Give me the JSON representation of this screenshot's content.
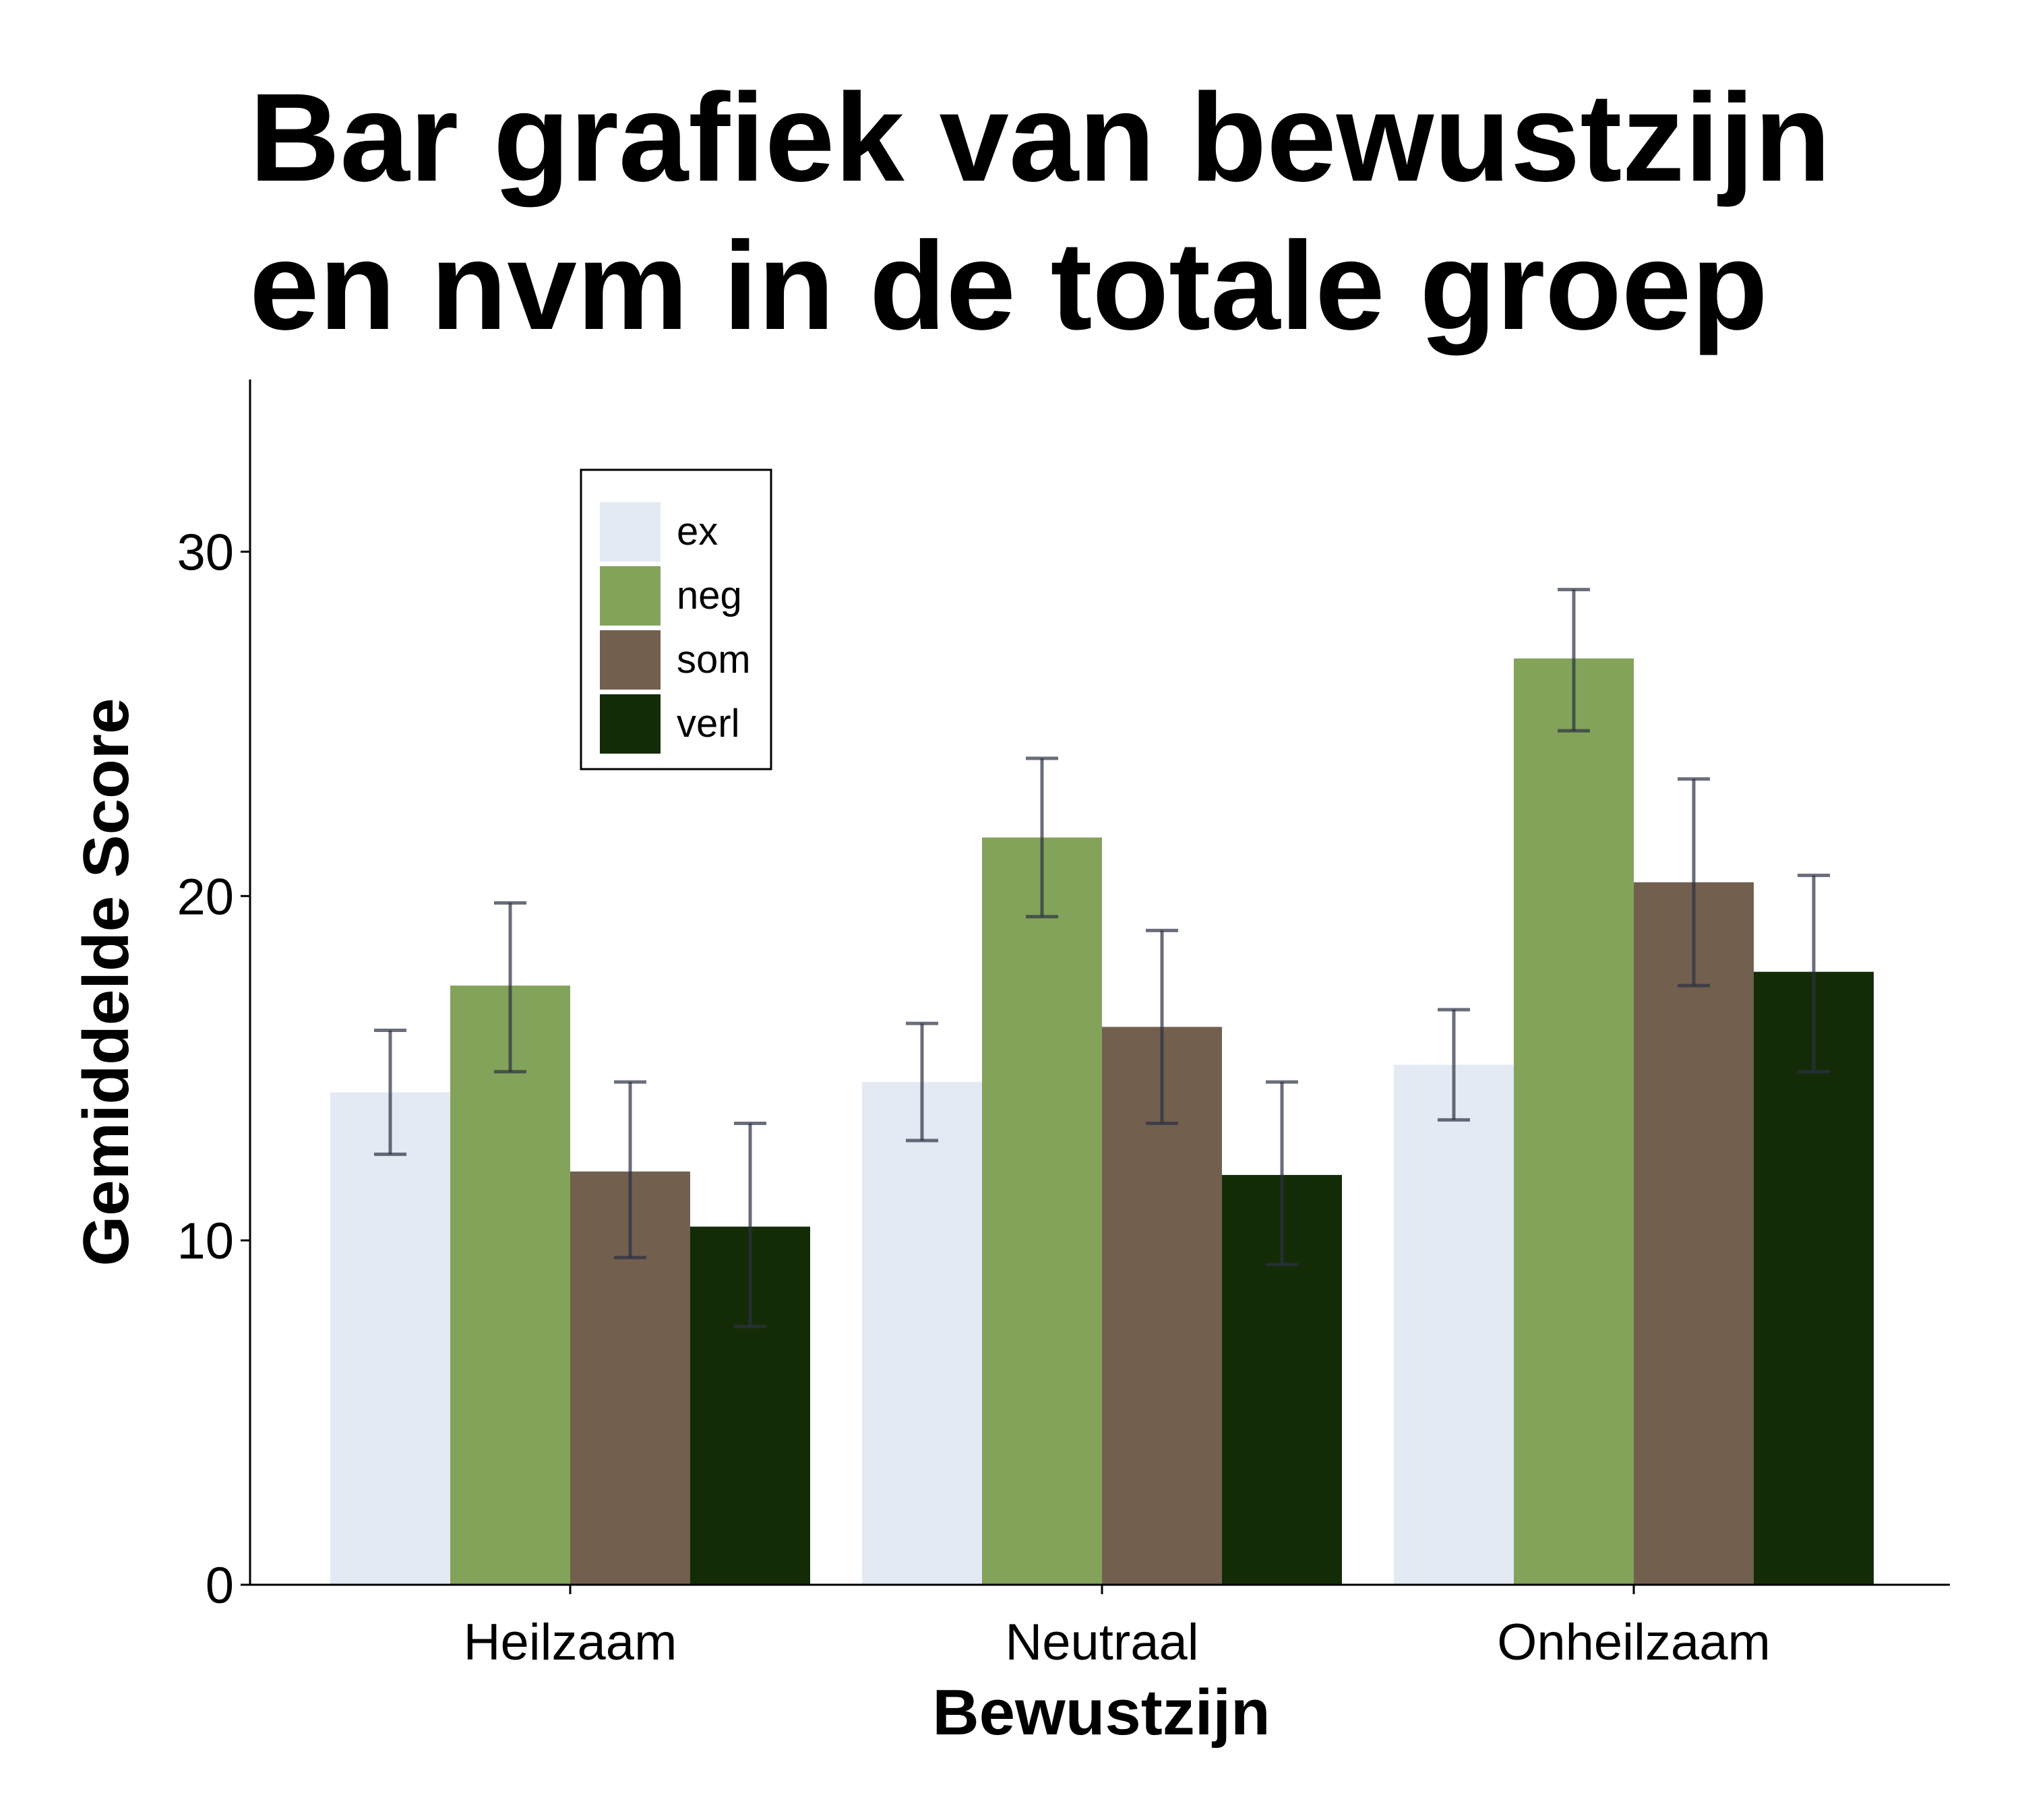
{
  "chart_data": {
    "type": "bar",
    "title_lines": [
      "Bar grafiek van bewustzijn",
      "en nvm in de totale groep"
    ],
    "xlabel": "Bewustzijn",
    "ylabel": "Gemiddelde Score",
    "categories": [
      "Heilzaam",
      "Neutraal",
      "Onheilzaam"
    ],
    "ylim": [
      0,
      35
    ],
    "yticks": [
      0,
      10,
      20,
      30
    ],
    "grid": false,
    "legend_position": "top-left",
    "series": [
      {
        "name": "ex",
        "color": "#e3eaf3",
        "values": [
          14.3,
          14.6,
          15.1
        ],
        "err_low": [
          12.5,
          12.9,
          13.5
        ],
        "err_high": [
          16.1,
          16.3,
          16.7
        ]
      },
      {
        "name": "neg",
        "color": "#84a35a",
        "values": [
          17.4,
          21.7,
          26.9
        ],
        "err_low": [
          14.9,
          19.4,
          24.8
        ],
        "err_high": [
          19.8,
          24.0,
          28.9
        ]
      },
      {
        "name": "som",
        "color": "#725f4e",
        "values": [
          12.0,
          16.2,
          20.4
        ],
        "err_low": [
          9.5,
          13.4,
          17.4
        ],
        "err_high": [
          14.6,
          19.0,
          23.4
        ]
      },
      {
        "name": "verl",
        "color": "#132c07",
        "values": [
          10.4,
          11.9,
          17.8
        ],
        "err_low": [
          7.5,
          9.3,
          14.9
        ],
        "err_high": [
          13.4,
          14.6,
          20.6
        ]
      }
    ],
    "errorbar_color": "#2b3042"
  }
}
